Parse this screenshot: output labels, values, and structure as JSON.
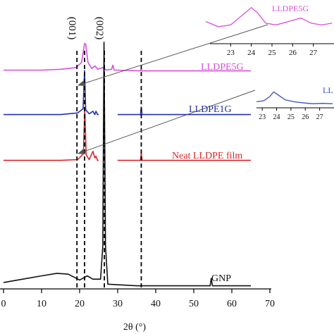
{
  "chart_data": {
    "type": "line",
    "xlabel": "2θ (°)",
    "xlim": [
      0,
      70
    ],
    "xticks": [
      0,
      10,
      20,
      30,
      40,
      50,
      60,
      70
    ],
    "reference_lines_2theta": [
      19.3,
      21.3,
      26.5,
      36.2
    ],
    "peak_labels": [
      {
        "text": "(001)",
        "x": 19.3
      },
      {
        "text": "(002)",
        "x": 26.5
      }
    ],
    "series": [
      {
        "name": "LLDPE5G",
        "color": "#d94fd9",
        "points": [
          [
            0,
            0.03
          ],
          [
            10,
            0.03
          ],
          [
            15,
            0.04
          ],
          [
            19,
            0.06
          ],
          [
            20.5,
            0.12
          ],
          [
            21.3,
            0.35
          ],
          [
            21.6,
            0.34
          ],
          [
            22.2,
            0.12
          ],
          [
            23.2,
            0.05
          ],
          [
            24.0,
            0.08
          ],
          [
            24.8,
            0.04
          ],
          [
            26.0,
            0.06
          ],
          [
            27.0,
            0.03
          ],
          [
            28.4,
            0.04
          ],
          [
            28.7,
            0.09
          ],
          [
            29.1,
            0.03
          ],
          [
            36.0,
            0.02
          ],
          [
            36.2,
            0.05
          ],
          [
            36.4,
            0.02
          ],
          [
            50,
            0.02
          ],
          [
            65,
            0.02
          ]
        ]
      },
      {
        "name": "LLDPE1G",
        "color": "#2230b0",
        "points": [
          [
            0,
            0.02
          ],
          [
            15,
            0.02
          ],
          [
            19.5,
            0.04
          ],
          [
            20.9,
            0.09
          ],
          [
            21.3,
            0.55
          ],
          [
            21.6,
            0.08
          ],
          [
            22.5,
            0.03
          ],
          [
            23.5,
            0.06
          ],
          [
            24.0,
            0.02
          ],
          [
            24.3,
            0.06
          ],
          [
            24.7,
            0.02
          ],
          [
            25.0,
            0.02
          ],
          null,
          [
            30.0,
            0.02
          ],
          [
            36.0,
            0.02
          ],
          [
            36.2,
            0.11
          ],
          [
            36.4,
            0.02
          ],
          [
            65,
            0.02
          ]
        ]
      },
      {
        "name": "Neat LLDPE film",
        "color": "#d8262b",
        "points": [
          [
            0,
            0.02
          ],
          [
            15,
            0.02
          ],
          [
            19.5,
            0.03
          ],
          [
            21.0,
            0.1
          ],
          [
            21.35,
            0.66
          ],
          [
            21.7,
            0.09
          ],
          [
            22.5,
            0.03
          ],
          [
            23.5,
            0.13
          ],
          [
            24.0,
            0.05
          ],
          [
            24.3,
            0.07
          ],
          [
            24.7,
            0.02
          ],
          [
            25.0,
            0.02
          ],
          null,
          [
            30.0,
            0.02
          ],
          [
            36.0,
            0.02
          ],
          [
            36.2,
            0.11
          ],
          [
            36.4,
            0.02
          ],
          [
            65,
            0.02
          ]
        ]
      },
      {
        "name": "GNP",
        "color": "#111111",
        "points": [
          [
            0,
            0.06
          ],
          [
            5,
            0.1
          ],
          [
            10,
            0.14
          ],
          [
            14,
            0.17
          ],
          [
            17,
            0.16
          ],
          [
            20,
            0.09
          ],
          [
            22,
            0.14
          ],
          [
            23.5,
            0.1
          ],
          [
            25.5,
            0.1
          ],
          [
            26.1,
            0.5
          ],
          [
            26.4,
            2.95
          ],
          [
            26.8,
            0.5
          ],
          [
            27.4,
            0.04
          ],
          [
            35,
            0.02
          ],
          [
            45,
            0.02
          ],
          [
            54.3,
            0.02
          ],
          [
            54.6,
            0.11
          ],
          [
            54.9,
            0.02
          ],
          [
            65,
            0.02
          ]
        ]
      }
    ],
    "labels": [
      {
        "text": "LLDPE5G",
        "color": "#d94fd9"
      },
      {
        "text": "LLDPE1G",
        "color": "#2230b0"
      },
      {
        "text": "Neat LLDPE film",
        "color": "#d8262b"
      },
      {
        "text": "GNP",
        "color": "#111111"
      }
    ],
    "insets": [
      {
        "label": "LLDPE5G",
        "color": "#d94fd9",
        "xticks": [
          23,
          24,
          25,
          26,
          27
        ],
        "points": [
          [
            21.8,
            0.6
          ],
          [
            22.4,
            0.45
          ],
          [
            23.0,
            0.5
          ],
          [
            23.5,
            0.75
          ],
          [
            24.0,
            1.0
          ],
          [
            24.3,
            0.85
          ],
          [
            24.7,
            0.55
          ],
          [
            25.2,
            0.5
          ],
          [
            25.8,
            0.6
          ],
          [
            26.4,
            0.7
          ],
          [
            26.9,
            0.55
          ],
          [
            27.4,
            0.5
          ],
          [
            27.9,
            0.55
          ]
        ]
      },
      {
        "label": "LL",
        "color": "#3a4fc8",
        "xticks": [
          23,
          24,
          25,
          26,
          27
        ],
        "points": [
          [
            22.6,
            0.2
          ],
          [
            23.1,
            0.25
          ],
          [
            23.5,
            0.45
          ],
          [
            23.8,
            0.7
          ],
          [
            24.1,
            0.55
          ],
          [
            24.6,
            0.3
          ],
          [
            25.2,
            0.2
          ],
          [
            25.8,
            0.15
          ],
          [
            26.5,
            0.1
          ],
          [
            27.2,
            0.12
          ],
          [
            27.9,
            0.1
          ]
        ]
      }
    ]
  }
}
